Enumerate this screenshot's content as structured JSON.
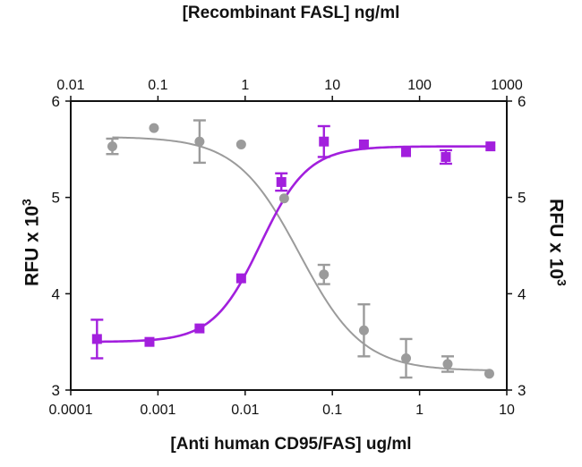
{
  "chart_data": {
    "type": "scatter",
    "top_xlabel": "[Recombinant FASL] ng/ml",
    "bottom_xlabel": "[Anti human CD95/FAS] ug/ml",
    "ylabel_left": {
      "text": "RFU x 10",
      "exp": "3"
    },
    "ylabel_right": {
      "text": "RFU x 10",
      "exp": "3"
    },
    "x_bottom": {
      "scale": "log",
      "lim": [
        0.0001,
        10
      ],
      "ticks": [
        "0.0001",
        "0.001",
        "0.01",
        "0.1",
        "1",
        "10"
      ]
    },
    "x_top": {
      "scale": "log",
      "lim": [
        0.01,
        1000
      ],
      "ticks": [
        "0.01",
        "0.1",
        "1",
        "10",
        "100",
        "1000"
      ]
    },
    "y_left": {
      "lim": [
        3,
        6
      ],
      "ticks": [
        "3",
        "4",
        "5",
        "6"
      ]
    },
    "y_right": {
      "lim": [
        3,
        6
      ],
      "ticks": [
        "3",
        "4",
        "5",
        "6"
      ]
    },
    "series": [
      {
        "axis": "top",
        "color": "#9b9b9b",
        "marker": "circle",
        "points": [
          {
            "x": 0.03,
            "y": 5.53,
            "err": 0.08
          },
          {
            "x": 0.09,
            "y": 5.72,
            "err": 0.0
          },
          {
            "x": 0.3,
            "y": 5.58,
            "err": 0.22
          },
          {
            "x": 0.9,
            "y": 5.55,
            "err": 0.0
          },
          {
            "x": 2.8,
            "y": 4.99,
            "err": 0.0
          },
          {
            "x": 8.0,
            "y": 4.2,
            "err": 0.1
          },
          {
            "x": 23,
            "y": 3.62,
            "err": 0.27
          },
          {
            "x": 70,
            "y": 3.33,
            "err": 0.2
          },
          {
            "x": 210,
            "y": 3.27,
            "err": 0.08
          },
          {
            "x": 630,
            "y": 3.17,
            "err": 0.0
          }
        ],
        "curve": {
          "bottom": 3.2,
          "top": 5.63,
          "ec50": 4.2,
          "hill": 1.2
        }
      },
      {
        "axis": "bottom",
        "color": "#a21fdd",
        "marker": "square",
        "points": [
          {
            "x": 0.0002,
            "y": 3.53,
            "err": 0.2
          },
          {
            "x": 0.0008,
            "y": 3.5,
            "err": 0.0
          },
          {
            "x": 0.003,
            "y": 3.64,
            "err": 0.0
          },
          {
            "x": 0.009,
            "y": 4.16,
            "err": 0.0
          },
          {
            "x": 0.026,
            "y": 5.16,
            "err": 0.09
          },
          {
            "x": 0.08,
            "y": 5.58,
            "err": 0.16
          },
          {
            "x": 0.23,
            "y": 5.55,
            "err": 0.0
          },
          {
            "x": 0.7,
            "y": 5.47,
            "err": 0.0
          },
          {
            "x": 2.0,
            "y": 5.42,
            "err": 0.07
          },
          {
            "x": 6.5,
            "y": 5.53,
            "err": 0.0
          }
        ],
        "curve": {
          "bottom": 3.5,
          "top": 5.53,
          "ec50": 0.015,
          "hill": 1.6
        }
      }
    ]
  }
}
